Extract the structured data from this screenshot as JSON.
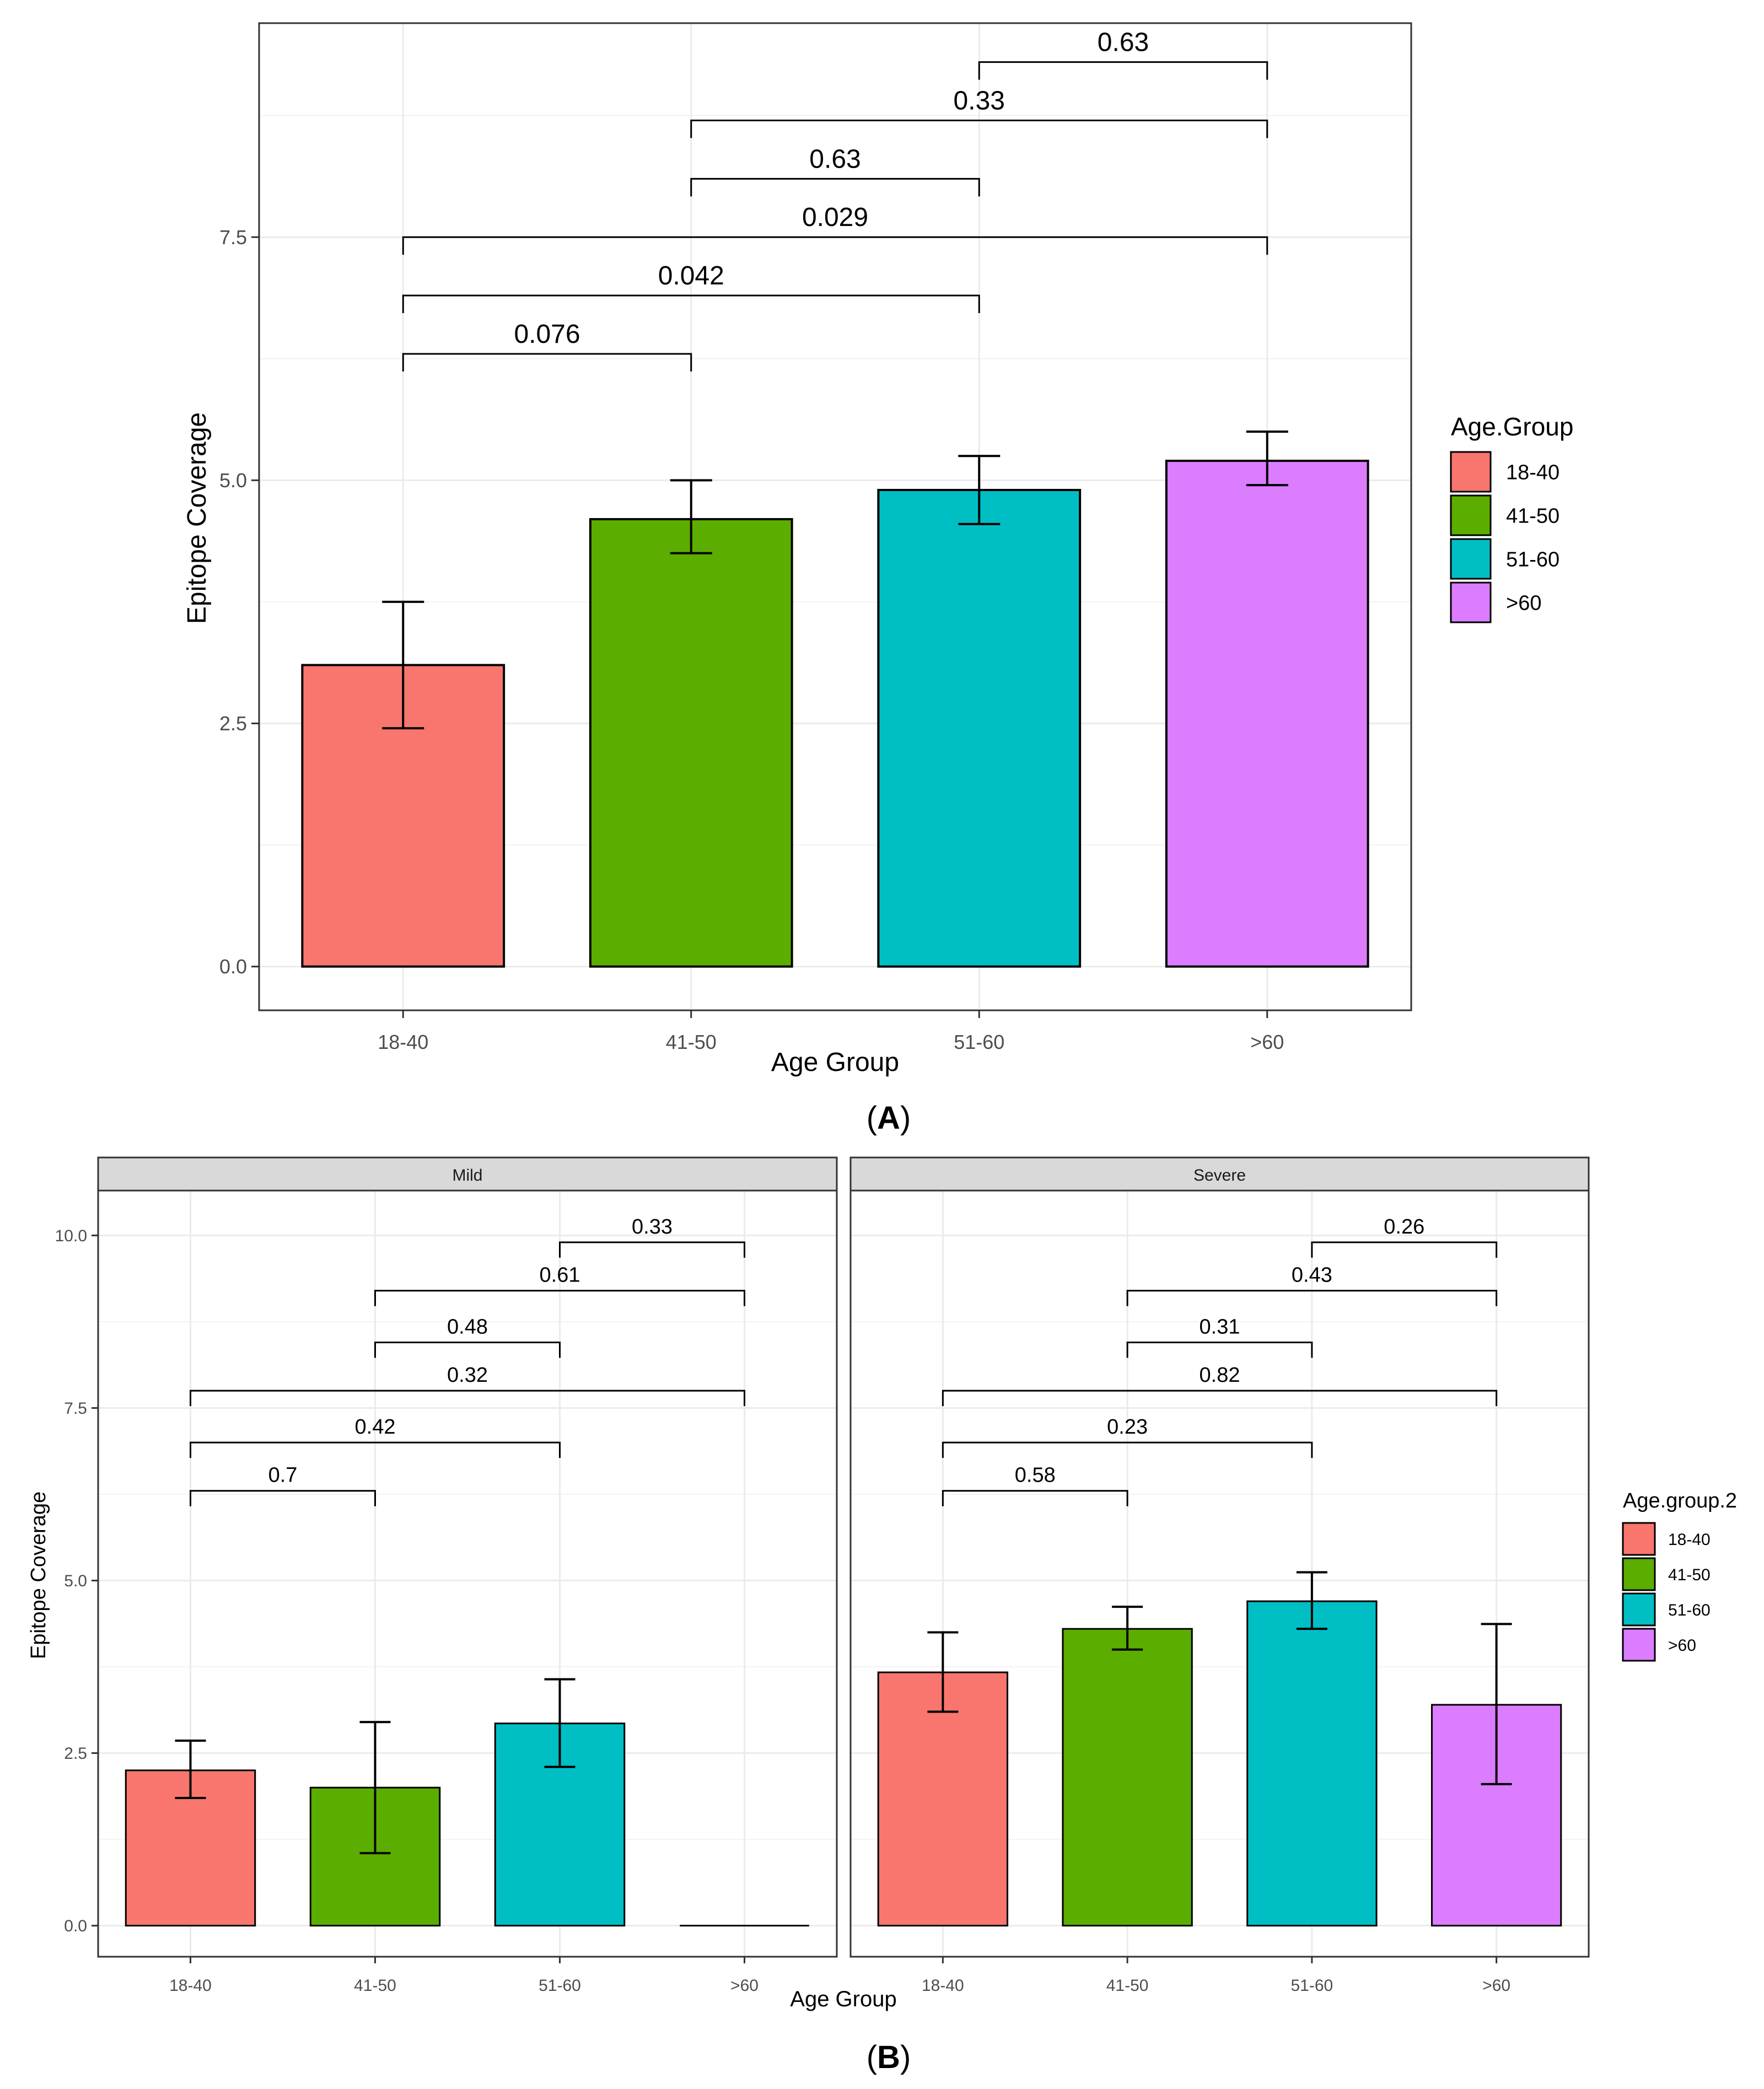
{
  "figure": {
    "panel_a_label": "A",
    "panel_b_label": "B"
  },
  "colors": {
    "groups": [
      "#F8766D",
      "#5BAD00",
      "#00BFC4",
      "#DC7CFF"
    ],
    "strip": "#D9D9D9",
    "grid": "#EBEBEB",
    "panel_border": "#333333"
  },
  "chart_data": [
    {
      "type": "bar",
      "panel": "A",
      "xlabel": "Age Group",
      "ylabel": "Epitope Coverage",
      "categories": [
        "18-40",
        "41-50",
        "51-60",
        ">60"
      ],
      "values": [
        3.1,
        4.6,
        4.9,
        5.2
      ],
      "error_low": [
        2.45,
        4.25,
        4.55,
        4.95
      ],
      "error_high": [
        3.75,
        5.0,
        5.25,
        5.5
      ],
      "ylim": [
        -0.45,
        9.7
      ],
      "yticks": [
        0.0,
        2.5,
        5.0,
        7.5
      ],
      "ytick_labels": [
        "0.0",
        "2.5",
        "5.0",
        "7.5"
      ],
      "grid": true,
      "legend": {
        "title": "Age.Group",
        "entries": [
          "18-40",
          "41-50",
          "51-60",
          ">60"
        ],
        "position": "right"
      },
      "comparisons": [
        {
          "from": 0,
          "to": 1,
          "label": "0.076",
          "y": 6.3
        },
        {
          "from": 0,
          "to": 2,
          "label": "0.042",
          "y": 6.9
        },
        {
          "from": 0,
          "to": 3,
          "label": "0.029",
          "y": 7.5
        },
        {
          "from": 1,
          "to": 2,
          "label": "0.63",
          "y": 8.1
        },
        {
          "from": 1,
          "to": 3,
          "label": "0.33",
          "y": 8.7
        },
        {
          "from": 2,
          "to": 3,
          "label": "0.63",
          "y": 9.3
        }
      ]
    },
    {
      "type": "bar",
      "panel": "B",
      "xlabel": "Age Group",
      "ylabel": "Epitope Coverage",
      "ylim": [
        -0.45,
        10.65
      ],
      "yticks": [
        0.0,
        2.5,
        5.0,
        7.5,
        10.0
      ],
      "ytick_labels": [
        "0.0",
        "2.5",
        "5.0",
        "7.5",
        "10.0"
      ],
      "grid": true,
      "legend": {
        "title": "Age.group.2",
        "entries": [
          "18-40",
          "41-50",
          "51-60",
          ">60"
        ],
        "position": "right"
      },
      "facets": [
        {
          "name": "Mild",
          "categories": [
            "18-40",
            "41-50",
            "51-60",
            ">60"
          ],
          "values": [
            2.25,
            2.0,
            2.93,
            0.0
          ],
          "error_low": [
            1.85,
            1.05,
            2.3,
            null
          ],
          "error_high": [
            2.68,
            2.95,
            3.57,
            null
          ],
          "comparisons": [
            {
              "from": 0,
              "to": 1,
              "label": "0.7",
              "y": 6.3
            },
            {
              "from": 0,
              "to": 2,
              "label": "0.42",
              "y": 7.0
            },
            {
              "from": 0,
              "to": 3,
              "label": "0.32",
              "y": 7.75
            },
            {
              "from": 1,
              "to": 2,
              "label": "0.48",
              "y": 8.45
            },
            {
              "from": 1,
              "to": 3,
              "label": "0.61",
              "y": 9.2
            },
            {
              "from": 2,
              "to": 3,
              "label": "0.33",
              "y": 9.9
            }
          ]
        },
        {
          "name": "Severe",
          "categories": [
            "18-40",
            "41-50",
            "51-60",
            ">60"
          ],
          "values": [
            3.67,
            4.3,
            4.7,
            3.2
          ],
          "error_low": [
            3.1,
            4.0,
            4.3,
            2.05
          ],
          "error_high": [
            4.25,
            4.62,
            5.12,
            4.37
          ],
          "comparisons": [
            {
              "from": 0,
              "to": 1,
              "label": "0.58",
              "y": 6.3
            },
            {
              "from": 0,
              "to": 2,
              "label": "0.23",
              "y": 7.0
            },
            {
              "from": 0,
              "to": 3,
              "label": "0.82",
              "y": 7.75
            },
            {
              "from": 1,
              "to": 2,
              "label": "0.31",
              "y": 8.45
            },
            {
              "from": 1,
              "to": 3,
              "label": "0.43",
              "y": 9.2
            },
            {
              "from": 2,
              "to": 3,
              "label": "0.26",
              "y": 9.9
            }
          ]
        }
      ]
    }
  ]
}
